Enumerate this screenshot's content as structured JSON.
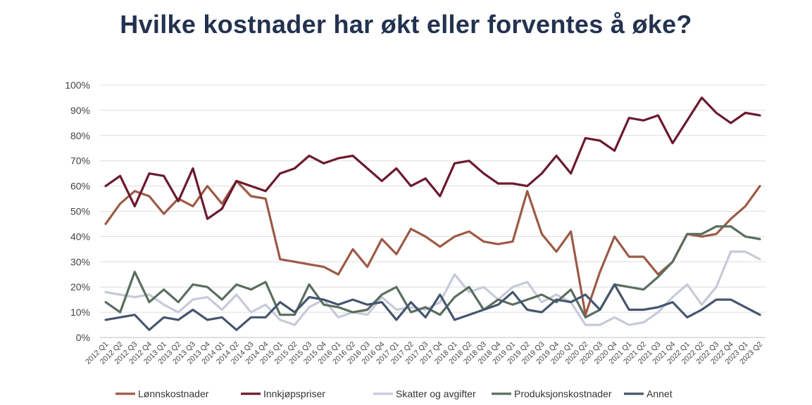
{
  "chart_data": {
    "type": "line",
    "title": "Hvilke kostnader har økt eller forventes å øke?",
    "ylim": [
      0,
      100
    ],
    "yticks": [
      "0%",
      "10%",
      "20%",
      "30%",
      "40%",
      "50%",
      "60%",
      "70%",
      "80%",
      "90%",
      "100%"
    ],
    "grid": true,
    "legend": "bottom",
    "categories": [
      "2012 Q1",
      "2012 Q2",
      "2012 Q3",
      "2012 Q4",
      "2013 Q1",
      "2013 Q2",
      "2013 Q3",
      "2013 Q4",
      "2014 Q1",
      "2014 Q2",
      "2014 Q3",
      "2014 Q4",
      "2015 Q1",
      "2015 Q2",
      "2015 Q3",
      "2015 Q4",
      "2016 Q1",
      "2016 Q2",
      "2016 Q3",
      "2016 Q4",
      "2017 Q1",
      "2017 Q2",
      "2017 Q3",
      "2017 Q4",
      "2018 Q1",
      "2018 Q2",
      "2018 Q3",
      "2018 Q4",
      "2019 Q1",
      "2019 Q2",
      "2019 Q3",
      "2019 Q4",
      "2020 Q1",
      "2020 Q2",
      "2020 Q3",
      "2020 Q4",
      "2021 Q1",
      "2021 Q2",
      "2021 Q3",
      "2021 Q4",
      "2022 Q1",
      "2022 Q2",
      "2022 Q3",
      "2022 Q4",
      "2023 Q1",
      "2023 Q2"
    ],
    "xticks": [
      "2012 Q1",
      "2012 Q2",
      "2012 Q3",
      "2012 Q4",
      "2013 Q1",
      "2013 Q2",
      "2013 Q3",
      "2013 Q4",
      "2014 Q1",
      "2014 Q2",
      "2014 Q3",
      "2014 Q4",
      "2015 Q1",
      "2015 Q2",
      "2015 Q3",
      "2015 Q4",
      "2016 Q1",
      "2016 Q2",
      "2016 Q3",
      "2016 Q4",
      "2017 Q1",
      "2017 Q2",
      "2017 Q3",
      "2017 Q4",
      "2018 Q1",
      "2018 Q2",
      "2018 Q3",
      "2018 Q4",
      "2019 Q1",
      "2019 Q2",
      "2019 Q3",
      "2019 Q4",
      "2020 Q1",
      "2020 Q2",
      "2020 Q3",
      "2020 Q4",
      "2021 Q1",
      "2021 Q2",
      "2021 Q3",
      "2021 Q4",
      "2022 Q1",
      "2022 Q2",
      "2022 Q3",
      "2022 Q4",
      "2023 Q1",
      "2023 Q2"
    ],
    "series": [
      {
        "name": "Lønnskostnader",
        "color": "#9c5a45",
        "values": [
          45,
          53,
          58,
          56,
          49,
          55,
          52,
          60,
          53,
          62,
          56,
          55,
          31,
          30,
          29,
          28,
          25,
          35,
          28,
          39,
          33,
          43,
          40,
          36,
          40,
          42,
          38,
          37,
          38,
          58,
          41,
          34,
          42,
          9,
          26,
          40,
          32,
          32,
          25,
          30,
          41,
          40,
          41,
          47,
          52,
          60
        ]
      },
      {
        "name": "Innkjøpspriser",
        "color": "#6b1a2e",
        "values": [
          60,
          64,
          52,
          65,
          64,
          54,
          67,
          47,
          51,
          62,
          60,
          58,
          65,
          67,
          72,
          69,
          71,
          72,
          67,
          62,
          67,
          60,
          63,
          56,
          69,
          70,
          65,
          61,
          61,
          60,
          65,
          72,
          65,
          79,
          78,
          74,
          87,
          86,
          88,
          77,
          86,
          95,
          89,
          85,
          89,
          88
        ]
      },
      {
        "name": "Skatter og avgifter",
        "color": "#c6cad9",
        "values": [
          18,
          17,
          16,
          17,
          13,
          10,
          15,
          16,
          11,
          17,
          10,
          13,
          7,
          5,
          12,
          15,
          8,
          10,
          9,
          16,
          11,
          12,
          11,
          14,
          25,
          18,
          20,
          15,
          20,
          22,
          14,
          17,
          14,
          5,
          5,
          8,
          5,
          6,
          10,
          16,
          21,
          13,
          20,
          34,
          34,
          31
        ]
      },
      {
        "name": "Produksjonskostnader",
        "color": "#5a6e5e",
        "values": [
          14,
          10,
          26,
          14,
          19,
          14,
          21,
          20,
          15,
          21,
          19,
          22,
          9,
          9,
          21,
          13,
          12,
          10,
          11,
          17,
          20,
          10,
          12,
          9,
          16,
          20,
          11,
          15,
          13,
          15,
          17,
          14,
          19,
          8,
          11,
          21,
          20,
          19,
          24,
          30,
          41,
          41,
          44,
          44,
          40,
          39
        ]
      },
      {
        "name": "Annet",
        "color": "#44556f",
        "values": [
          7,
          8,
          9,
          3,
          8,
          7,
          11,
          7,
          8,
          3,
          8,
          8,
          14,
          10,
          16,
          15,
          13,
          15,
          13,
          14,
          7,
          14,
          8,
          17,
          7,
          9,
          11,
          13,
          18,
          11,
          10,
          15,
          14,
          17,
          11,
          21,
          11,
          11,
          12,
          14,
          8,
          11,
          15,
          15,
          12,
          9
        ]
      }
    ]
  }
}
